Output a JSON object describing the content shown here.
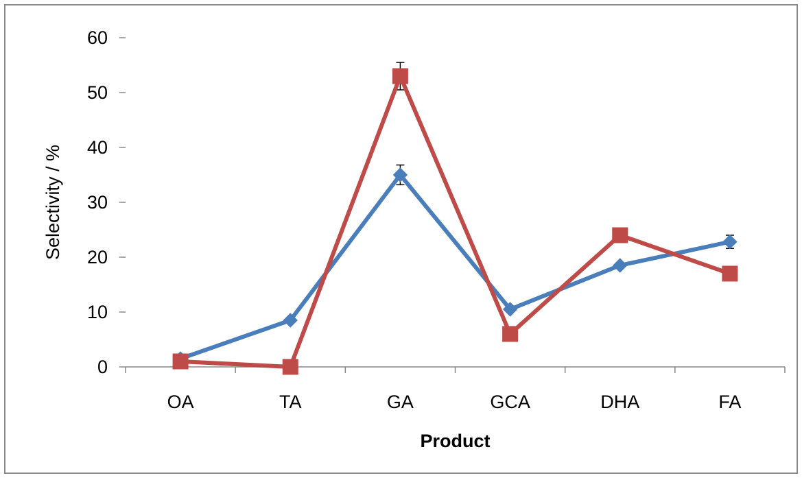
{
  "chart_data": {
    "type": "line",
    "title": "",
    "xlabel": "Product",
    "ylabel": "Selectivity / %",
    "categories": [
      "OA",
      "TA",
      "GA",
      "GCA",
      "DHA",
      "FA"
    ],
    "ylim": [
      0,
      60
    ],
    "yticks": [
      0,
      10,
      20,
      30,
      40,
      50,
      60
    ],
    "ytick_labels": [
      "0",
      "10",
      "20",
      "30",
      "40",
      "50",
      "60"
    ],
    "grid": false,
    "legend": "none",
    "series": [
      {
        "color": "#4a7ebb",
        "marker": "diamond",
        "values": [
          1.5,
          8.5,
          35,
          10.5,
          18.5,
          22.8
        ],
        "errors": [
          0,
          0,
          1.8,
          0,
          0,
          1.2
        ]
      },
      {
        "color": "#be4b48",
        "marker": "square",
        "values": [
          1,
          0,
          53,
          6,
          24,
          17
        ],
        "errors": [
          0,
          0,
          2.5,
          0,
          0,
          0
        ]
      }
    ]
  }
}
